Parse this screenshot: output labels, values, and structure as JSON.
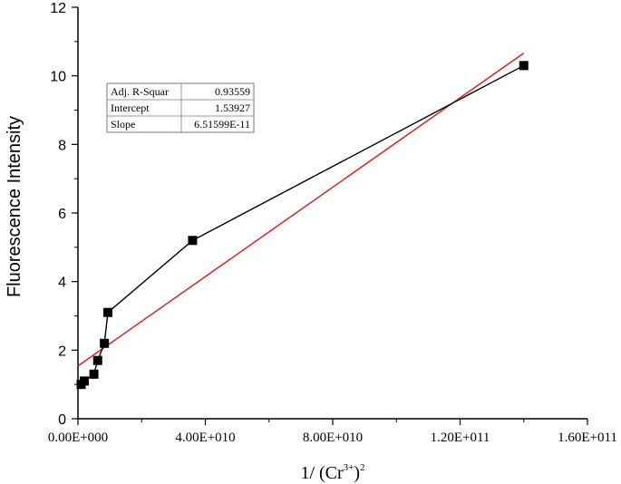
{
  "chart_data": {
    "type": "scatter",
    "title": "",
    "xlabel": "1/ (Cr3+)2",
    "xlabel_parts": {
      "prefix": "1/ (Cr",
      "sup1": "3+",
      "mid": ")",
      "sup2": "2"
    },
    "ylabel": "Fluorescence Intensity",
    "xlim": [
      0,
      160000000000
    ],
    "ylim": [
      0,
      12
    ],
    "x_ticks": [
      0,
      40000000000,
      80000000000,
      120000000000,
      160000000000
    ],
    "x_tick_labels": [
      "0.00E+000",
      "4.00E+010",
      "8.00E+010",
      "1.20E+011",
      "1.60E+011"
    ],
    "y_ticks": [
      0,
      2,
      4,
      6,
      8,
      10,
      12
    ],
    "y_tick_labels": [
      "0",
      "2",
      "4",
      "6",
      "8",
      "10",
      "12"
    ],
    "grid": false,
    "series": [
      {
        "x": [
          1000000000,
          2000000000,
          5000000000,
          6200000000,
          8300000000,
          9400000000,
          36000000000,
          140000000000
        ],
        "y": [
          1.0,
          1.1,
          1.3,
          1.7,
          2.2,
          3.1,
          5.2,
          10.3
        ],
        "color": "#000000",
        "marker": "square"
      }
    ],
    "fit": {
      "color": "#e02020",
      "x_range": [
        0,
        140000000000
      ],
      "intercept": 1.53927,
      "slope": 6.51599e-11
    },
    "stats_table": [
      {
        "label": "Adj. R-Squar",
        "value": "0.93559"
      },
      {
        "label": "Intercept",
        "value": "1.53927"
      },
      {
        "label": "Slope",
        "value": "6.51599E-11"
      }
    ]
  }
}
